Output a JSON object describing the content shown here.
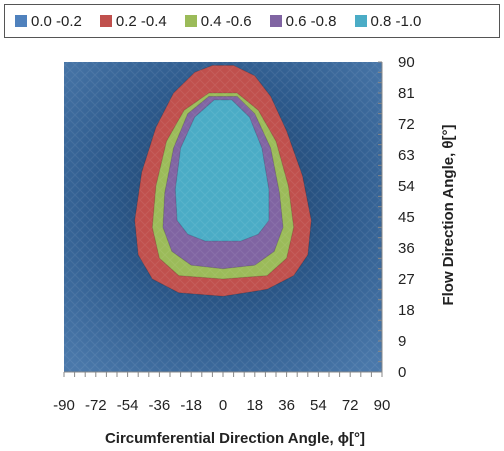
{
  "chart_data": {
    "type": "heatmap",
    "legend": [
      {
        "label": "0.0 -0.2",
        "color": "#4f81bd"
      },
      {
        "label": "0.2 -0.4",
        "color": "#c0504d"
      },
      {
        "label": "0.4 -0.6",
        "color": "#9bbb59"
      },
      {
        "label": "0.6 -0.8",
        "color": "#8064a2"
      },
      {
        "label": "0.8 -1.0",
        "color": "#4bacc6"
      }
    ],
    "xlabel": "Circumferential Direction Angle,  ϕ[°]",
    "ylabel": "Flow Direction Angle,  θ[°]",
    "xlim": [
      -90,
      90
    ],
    "ylim": [
      0,
      90
    ],
    "xticks": [
      "-90",
      "-72",
      "-54",
      "-36",
      "-18",
      "0",
      "18",
      "36",
      "54",
      "72",
      "90"
    ],
    "yticks": [
      "0",
      "9",
      "18",
      "27",
      "36",
      "45",
      "54",
      "63",
      "72",
      "81",
      "90"
    ],
    "contours": [
      {
        "level": "0.2 -0.4",
        "color": "#c0504d",
        "points": [
          [
            -6,
            89
          ],
          [
            6,
            89
          ],
          [
            18,
            86
          ],
          [
            27,
            80
          ],
          [
            36,
            70
          ],
          [
            45,
            57
          ],
          [
            50,
            44
          ],
          [
            48,
            34
          ],
          [
            40,
            28
          ],
          [
            25,
            24
          ],
          [
            0,
            22
          ],
          [
            -25,
            23
          ],
          [
            -40,
            27
          ],
          [
            -48,
            34
          ],
          [
            -50,
            44
          ],
          [
            -46,
            58
          ],
          [
            -38,
            71
          ],
          [
            -28,
            81
          ],
          [
            -16,
            87
          ]
        ]
      },
      {
        "level": "0.4 -0.6",
        "color": "#9bbb59",
        "points": [
          [
            -8,
            81
          ],
          [
            8,
            81
          ],
          [
            20,
            76
          ],
          [
            30,
            67
          ],
          [
            37,
            54
          ],
          [
            40,
            42
          ],
          [
            36,
            33
          ],
          [
            25,
            28
          ],
          [
            0,
            27
          ],
          [
            -25,
            28
          ],
          [
            -36,
            33
          ],
          [
            -40,
            42
          ],
          [
            -38,
            54
          ],
          [
            -32,
            67
          ],
          [
            -22,
            76
          ]
        ]
      },
      {
        "level": "0.6 -0.8",
        "color": "#8064a2",
        "points": [
          [
            -8,
            80
          ],
          [
            8,
            80
          ],
          [
            18,
            75
          ],
          [
            27,
            65
          ],
          [
            32,
            52
          ],
          [
            34,
            42
          ],
          [
            29,
            35
          ],
          [
            18,
            31
          ],
          [
            0,
            30
          ],
          [
            -18,
            31
          ],
          [
            -29,
            35
          ],
          [
            -34,
            42
          ],
          [
            -33,
            52
          ],
          [
            -28,
            65
          ],
          [
            -20,
            75
          ]
        ]
      },
      {
        "level": "0.8 -1.0",
        "color": "#4bacc6",
        "points": [
          [
            -5,
            79
          ],
          [
            5,
            79
          ],
          [
            15,
            74
          ],
          [
            22,
            65
          ],
          [
            26,
            53
          ],
          [
            26,
            44
          ],
          [
            20,
            40
          ],
          [
            10,
            38
          ],
          [
            0,
            38
          ],
          [
            -10,
            38
          ],
          [
            -20,
            40
          ],
          [
            -26,
            44
          ],
          [
            -27,
            53
          ],
          [
            -24,
            65
          ],
          [
            -16,
            74
          ]
        ]
      }
    ]
  }
}
